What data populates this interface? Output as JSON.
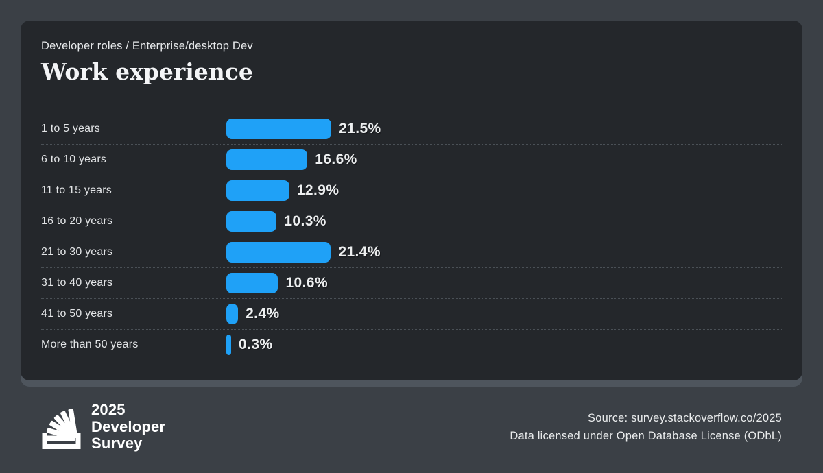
{
  "header": {
    "breadcrumb": "Developer roles / Enterprise/desktop Dev",
    "title": "Work experience"
  },
  "chart_data": {
    "type": "bar",
    "orientation": "horizontal",
    "title": "Work experience",
    "categories": [
      "1 to 5 years",
      "6 to 10 years",
      "11 to 15 years",
      "16 to 20 years",
      "21 to 30 years",
      "31 to 40 years",
      "41 to 50 years",
      "More than 50 years"
    ],
    "values": [
      21.5,
      16.6,
      12.9,
      10.3,
      21.4,
      10.6,
      2.4,
      0.3
    ],
    "display_values": [
      "21.5%",
      "16.6%",
      "12.9%",
      "10.3%",
      "21.4%",
      "10.6%",
      "2.4%",
      "0.3%"
    ],
    "value_suffix": "%",
    "bar_color": "#1fa1f7",
    "grid": "dotted-row-separators",
    "legend": "none",
    "axis_labels": "none"
  },
  "footer": {
    "logo_line1": "2025",
    "logo_line2": "Developer",
    "logo_line3": "Survey",
    "source_line1": "Source: survey.stackoverflow.co/2025",
    "source_line2": "Data licensed under Open Database License (ODbL)"
  },
  "colors": {
    "page_background": "#3b4046",
    "card_background": "#24272b",
    "card_shadow_band": "#4e555d",
    "bar_blue": "#1fa1f7",
    "label_text": "#e2e4e6",
    "value_text": "#edeff0",
    "title_text": "#f4f5f7",
    "separator_dotted": "#4a5056",
    "footer_text": "#e9ebec",
    "logo_white": "#ffffff"
  }
}
